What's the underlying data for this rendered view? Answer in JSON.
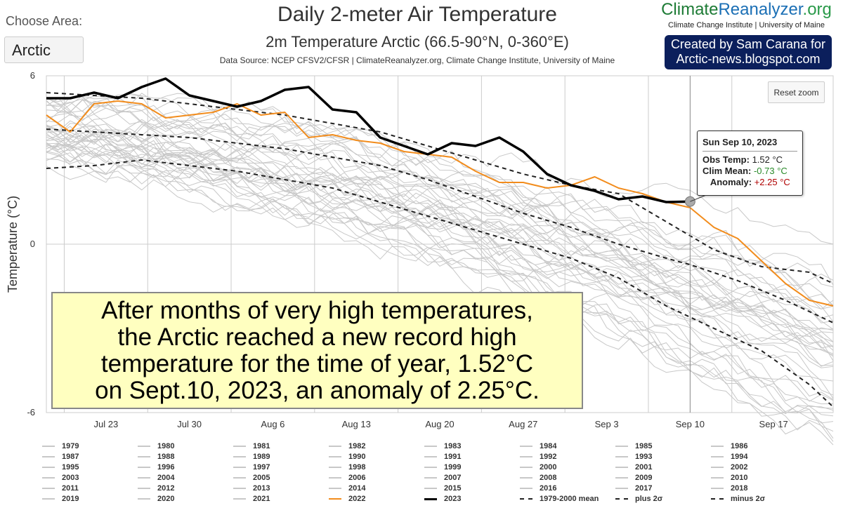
{
  "area": {
    "label": "Choose Area:",
    "selected": "Arctic"
  },
  "logo": {
    "main_a": "Climate",
    "main_b": "Reanalyzer",
    "main_c": ".org",
    "sub": "Climate Change Institute | University of Maine"
  },
  "credit": {
    "line1": "Created by Sam Carana for",
    "line2": "Arctic-news.blogspot.com"
  },
  "reset_zoom": "Reset zoom",
  "colors": {
    "background_series": "#c8c8c8",
    "y2022": "#f28c1c",
    "y2023": "#000000",
    "mean": "#222222",
    "grid": "#cccccc",
    "callout_bg": "#ffffc0"
  },
  "tooltip": {
    "date": "Sun Sep 10, 2023",
    "obs_label": "Obs Temp:",
    "obs_value": "1.52 °C",
    "clim_label": "Clim Mean:",
    "clim_value": "-0.73 °C",
    "anom_label": "Anomaly:",
    "anom_value": "+2.25 °C",
    "clim_color": "#2a8a2a",
    "anom_color": "#b00000"
  },
  "callout": {
    "lines": [
      "After months of very high temperatures,",
      "the Arctic reached a new record high",
      "temperature for the time of year, 1.52°C",
      "on Sept.10, 2023, an anomaly of 2.25°C."
    ]
  },
  "chart_data": {
    "type": "line",
    "title": "Daily 2-meter Air Temperature",
    "subtitle": "2m Temperature Arctic (66.5-90°N, 0-360°E)",
    "source": "Data Source: NCEP CFSV2/CFSR | ClimateReanalyzer.org, Climate Change Institute, University of Maine",
    "ylabel": "Temperature (°C)",
    "ylim": [
      -6,
      6
    ],
    "yticks": [
      6,
      0,
      -6
    ],
    "x_range": [
      "Jul 18",
      "Sep 22"
    ],
    "xticks": [
      "Jul 23",
      "Jul 30",
      "Aug 6",
      "Aug 13",
      "Aug 20",
      "Aug 27",
      "Sep 3",
      "Sep 10",
      "Sep 17"
    ],
    "crosshair_date": "Sep 10",
    "grid": true,
    "legend_position": "bottom",
    "legend": [
      "1979",
      "1980",
      "1981",
      "1982",
      "1983",
      "1984",
      "1985",
      "1986",
      "1987",
      "1988",
      "1989",
      "1990",
      "1991",
      "1992",
      "1993",
      "1994",
      "1995",
      "1996",
      "1997",
      "1998",
      "1999",
      "2000",
      "2001",
      "2002",
      "2003",
      "2004",
      "2005",
      "2006",
      "2007",
      "2008",
      "2009",
      "2010",
      "2011",
      "2012",
      "2013",
      "2014",
      "2015",
      "2016",
      "2017",
      "2018",
      "2019",
      "2020",
      "2021",
      "2022",
      "2023",
      "1979-2000 mean",
      "plus 2σ",
      "minus 2σ"
    ],
    "series": [
      {
        "name": "2023",
        "x": [
          "Jul 18",
          "Jul 20",
          "Jul 22",
          "Jul 24",
          "Jul 26",
          "Jul 28",
          "Jul 30",
          "Aug 1",
          "Aug 3",
          "Aug 5",
          "Aug 7",
          "Aug 9",
          "Aug 11",
          "Aug 13",
          "Aug 15",
          "Aug 17",
          "Aug 19",
          "Aug 21",
          "Aug 23",
          "Aug 25",
          "Aug 27",
          "Aug 29",
          "Aug 31",
          "Sep 2",
          "Sep 4",
          "Sep 6",
          "Sep 8",
          "Sep 10"
        ],
        "y": [
          5.2,
          5.2,
          5.4,
          5.2,
          5.6,
          5.9,
          5.3,
          5.1,
          4.9,
          5.1,
          5.5,
          5.6,
          4.8,
          4.7,
          3.8,
          3.5,
          3.2,
          3.6,
          3.5,
          3.8,
          3.3,
          2.5,
          2.1,
          1.9,
          1.6,
          1.7,
          1.5,
          1.52
        ]
      },
      {
        "name": "2022",
        "x": [
          "Jul 18",
          "Jul 20",
          "Jul 22",
          "Jul 24",
          "Jul 26",
          "Jul 28",
          "Jul 30",
          "Aug 1",
          "Aug 3",
          "Aug 5",
          "Aug 7",
          "Aug 9",
          "Aug 11",
          "Aug 13",
          "Aug 15",
          "Aug 17",
          "Aug 19",
          "Aug 21",
          "Aug 23",
          "Aug 25",
          "Aug 27",
          "Aug 29",
          "Aug 31",
          "Sep 2",
          "Sep 4",
          "Sep 6",
          "Sep 8",
          "Sep 10",
          "Sep 12",
          "Sep 14",
          "Sep 16",
          "Sep 18",
          "Sep 20",
          "Sep 22"
        ],
        "y": [
          4.6,
          4.0,
          5.0,
          5.1,
          5.0,
          4.5,
          4.6,
          4.7,
          5.0,
          4.6,
          4.7,
          3.8,
          3.9,
          3.7,
          3.6,
          3.3,
          3.2,
          3.1,
          2.6,
          2.2,
          2.2,
          2.0,
          2.1,
          2.4,
          2.0,
          1.8,
          1.5,
          1.3,
          0.6,
          0.2,
          -0.6,
          -1.4,
          -2.0,
          -2.2
        ]
      },
      {
        "name": "1979-2000 mean",
        "x": [
          "Jul 18",
          "Jul 22",
          "Jul 26",
          "Jul 30",
          "Aug 3",
          "Aug 7",
          "Aug 11",
          "Aug 15",
          "Aug 19",
          "Aug 23",
          "Aug 27",
          "Aug 31",
          "Sep 4",
          "Sep 8",
          "Sep 10",
          "Sep 14",
          "Sep 18",
          "Sep 22"
        ],
        "y": [
          4.1,
          4.0,
          3.9,
          3.8,
          3.6,
          3.4,
          3.1,
          2.8,
          2.3,
          1.7,
          1.1,
          0.6,
          0.0,
          -0.5,
          -0.73,
          -1.3,
          -2.0,
          -2.8
        ]
      },
      {
        "name": "plus 2σ",
        "x": [
          "Jul 18",
          "Jul 22",
          "Jul 26",
          "Jul 30",
          "Aug 3",
          "Aug 7",
          "Aug 11",
          "Aug 15",
          "Aug 19",
          "Aug 23",
          "Aug 27",
          "Aug 31",
          "Sep 4",
          "Sep 8",
          "Sep 12",
          "Sep 16",
          "Sep 20",
          "Sep 22"
        ],
        "y": [
          5.4,
          5.3,
          5.2,
          5.0,
          4.8,
          4.6,
          4.3,
          4.0,
          3.5,
          3.0,
          2.5,
          2.1,
          1.8,
          0.8,
          -0.2,
          -0.8,
          -1.0,
          -1.4
        ]
      },
      {
        "name": "minus 2σ",
        "x": [
          "Jul 18",
          "Jul 22",
          "Jul 26",
          "Jul 30",
          "Aug 3",
          "Aug 7",
          "Aug 11",
          "Aug 15",
          "Aug 19",
          "Aug 23",
          "Aug 27",
          "Aug 31",
          "Sep 4",
          "Sep 8",
          "Sep 12",
          "Sep 16",
          "Sep 20",
          "Sep 22"
        ],
        "y": [
          2.7,
          2.8,
          3.0,
          2.8,
          2.6,
          2.3,
          2.0,
          1.5,
          1.0,
          0.5,
          0.0,
          -0.5,
          -1.2,
          -2.2,
          -3.0,
          -3.8,
          -5.0,
          -5.8
        ]
      }
    ]
  }
}
